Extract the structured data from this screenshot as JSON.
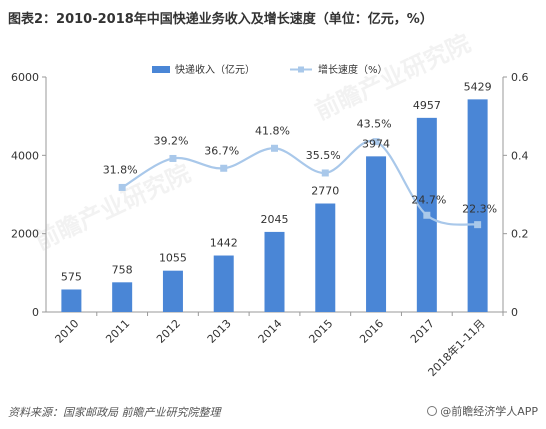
{
  "title": "图表2：2010-2018年中国快递业务收入及增长速度（单位：亿元，%）",
  "source": "资料来源：国家邮政局 前瞻产业研究院整理",
  "brand": "@前瞻经济学人APP",
  "watermark": "前瞻产业研究院",
  "colors": {
    "bar": "#4a86d6",
    "line": "#a9c8ea",
    "axis": "#999999",
    "text": "#333333"
  },
  "chart_data": {
    "type": "bar",
    "categories": [
      "2010",
      "2011",
      "2012",
      "2013",
      "2014",
      "2015",
      "2016",
      "2017",
      "2018年1-11月"
    ],
    "series": [
      {
        "name": "快递收入（亿元）",
        "type": "bar",
        "axis": "left",
        "values": [
          575,
          758,
          1055,
          1442,
          2045,
          2770,
          3974,
          4957,
          5429
        ],
        "labels": [
          "575",
          "758",
          "1055",
          "1442",
          "2045",
          "2770",
          "3974",
          "4957",
          "5429"
        ]
      },
      {
        "name": "增长速度（%）",
        "type": "line",
        "axis": "right",
        "values": [
          null,
          0.318,
          0.392,
          0.367,
          0.418,
          0.355,
          0.435,
          0.247,
          0.223
        ],
        "labels": [
          "",
          "31.8%",
          "39.2%",
          "36.7%",
          "41.8%",
          "35.5%",
          "43.5%",
          "24.7%",
          "22.3%"
        ]
      }
    ],
    "y_left": {
      "min": 0,
      "max": 6000,
      "ticks": [
        0,
        2000,
        4000,
        6000
      ],
      "tick_labels": [
        "0",
        "2000",
        "4000",
        "6000"
      ]
    },
    "y_right": {
      "min": 0,
      "max": 0.6,
      "ticks": [
        0,
        0.2,
        0.4,
        0.6
      ],
      "tick_labels": [
        "0",
        "0.2",
        "0.4",
        "0.6"
      ]
    },
    "legend_position": "top-center",
    "grid": false
  }
}
